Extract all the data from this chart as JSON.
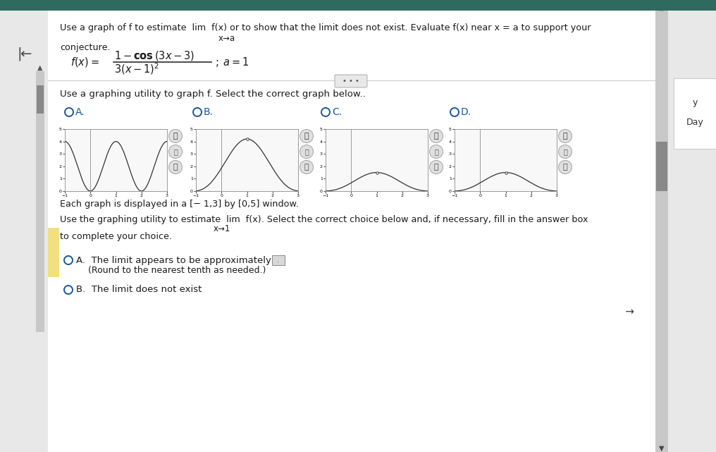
{
  "page_bg": "#e8e8e8",
  "white_bg": "#ffffff",
  "header_color": "#2e6b5e",
  "text_color": "#1a1a1a",
  "blue_color": "#1a56a0",
  "radio_color": "#1a56a0",
  "curve_color": "#333333",
  "graph_bg": "#f8f8f8",
  "graph_border": "#999999",
  "scroll_bg": "#c8c8c8",
  "scroll_handle": "#888888",
  "yellow_bg": "#f0e080",
  "answer_box": "#c8c8c8",
  "xmin": -1,
  "xmax": 3,
  "ymin": 0,
  "ymax": 5,
  "title_line1": "Use a graph of f to estimate  lim  f(x) or to show that the limit does not exist. Evaluate f(x) near x = a to support your",
  "title_lim_sub": "x→a",
  "title_line2": "conjecture.",
  "section_text": "Use a graphing utility to graph f. Select the correct graph below..",
  "window_text": "Each graph is displayed in a [− 1,3] by [0,5] window.",
  "limit_line1": "Use the graphing utility to estimate  lim  f(x). Select the correct choice below and, if necessary, fill in the answer box",
  "limit_sub": "x→1",
  "limit_line2": "to complete your choice.",
  "choiceA_text": "A.  The limit appears to be approximately",
  "choiceA_sub": "(Round to the nearest tenth as needed.)",
  "choiceB_text": "B.  The limit does not exist"
}
